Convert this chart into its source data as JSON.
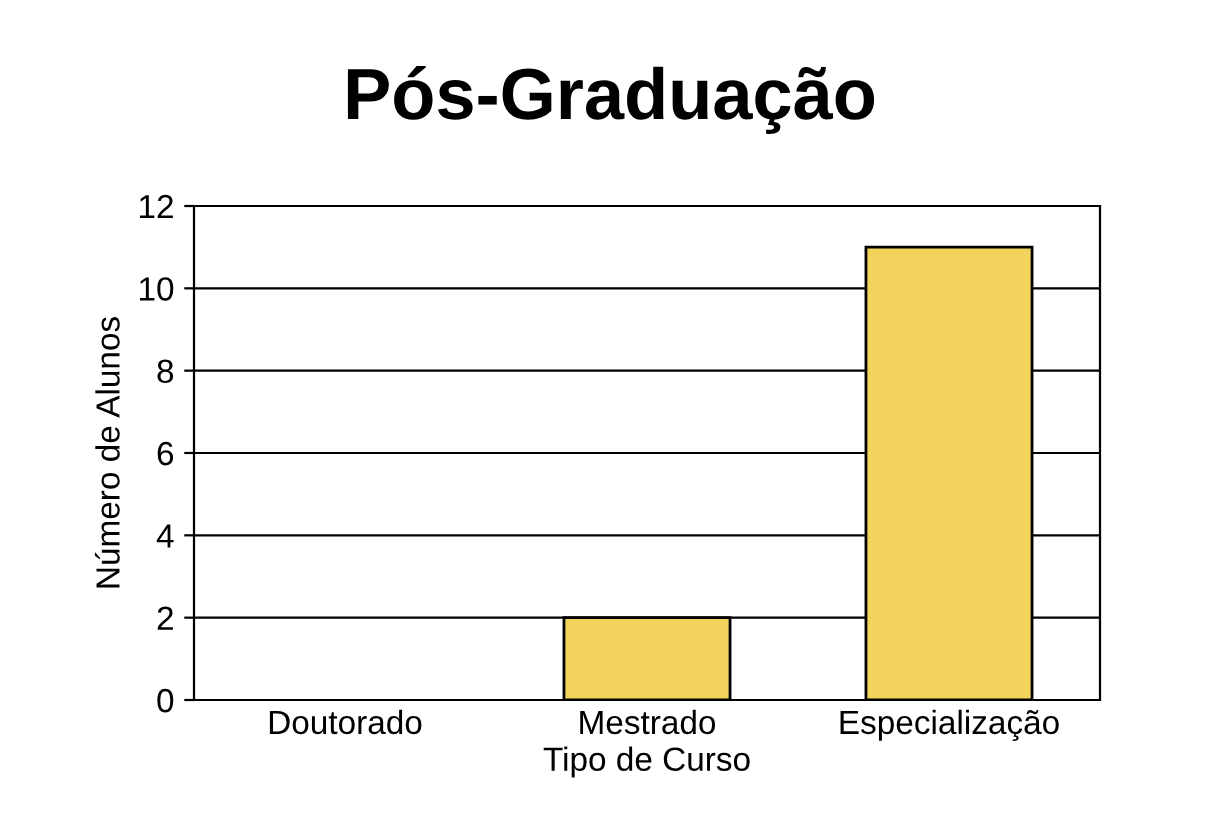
{
  "chart_data": {
    "type": "bar",
    "title": "Pós-Graduação",
    "xlabel": "Tipo de Curso",
    "ylabel": "Número de Alunos",
    "categories": [
      "Doutorado",
      "Mestrado",
      "Especialização"
    ],
    "values": [
      0,
      2,
      11
    ],
    "color": "#f2d45c",
    "ylim": [
      0,
      12
    ],
    "yticks": [
      0,
      2,
      4,
      6,
      8,
      10,
      12
    ],
    "grid": "y",
    "legend": false
  }
}
